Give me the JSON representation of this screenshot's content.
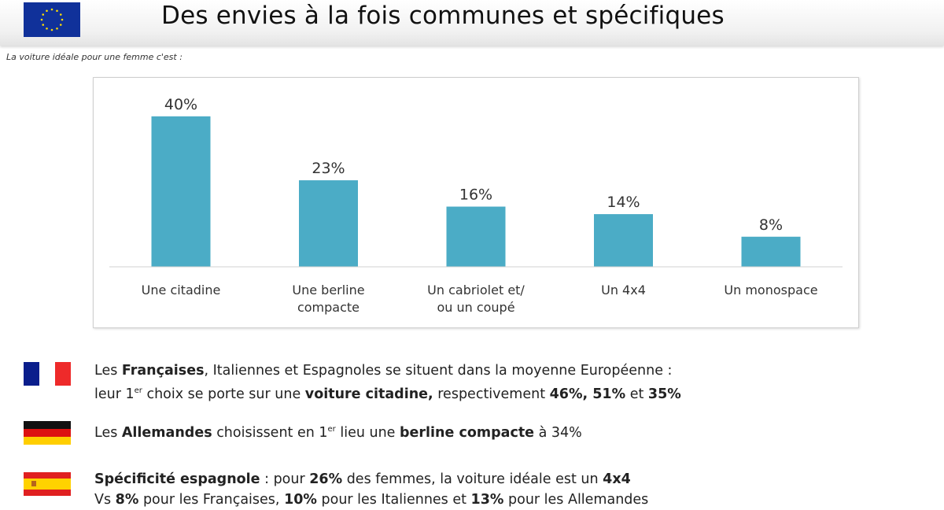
{
  "header": {
    "title": "Des envies à la fois communes et spécifiques"
  },
  "subtitle": "La voiture idéale pour une femme c'est :",
  "chart_data": {
    "type": "bar",
    "title": "La voiture idéale pour une femme c'est :",
    "categories": [
      [
        "Une citadine"
      ],
      [
        "Une berline",
        "compacte"
      ],
      [
        "Un cabriolet et/",
        "ou un coupé"
      ],
      [
        "Un 4x4"
      ],
      [
        "Un monospace"
      ]
    ],
    "values": [
      40,
      23,
      16,
      14,
      8
    ],
    "labels": [
      "40%",
      "23%",
      "16%",
      "14%",
      "8%"
    ],
    "xlabel": "",
    "ylabel": "",
    "ylim": [
      0,
      50
    ],
    "grid": false,
    "bar_color": "#4bacc6"
  },
  "notes": [
    {
      "flag": "france-flag",
      "lines": [
        [
          {
            "t": "Les "
          },
          {
            "t": "Françaises",
            "b": true
          },
          {
            "t": ", Italiennes et Espagnoles se situent dans la moyenne Européenne :"
          }
        ],
        [
          {
            "t": "leur 1"
          },
          {
            "t": "er",
            "sup": true
          },
          {
            "t": " choix se porte sur une "
          },
          {
            "t": "voiture citadine,",
            "b": true
          },
          {
            "t": " respectivement "
          },
          {
            "t": "46%, 51%",
            "b": true
          },
          {
            "t": " et "
          },
          {
            "t": "35%",
            "b": true
          }
        ]
      ]
    },
    {
      "flag": "germany-flag",
      "lines": [
        [
          {
            "t": "Les "
          },
          {
            "t": "Allemandes",
            "b": true
          },
          {
            "t": " choisissent en 1"
          },
          {
            "t": "er",
            "sup": true
          },
          {
            "t": " lieu une "
          },
          {
            "t": "berline compacte",
            "b": true
          },
          {
            "t": " à 34%"
          }
        ]
      ]
    },
    {
      "flag": "spain-flag",
      "lines": [
        [
          {
            "t": "Spécificité espagnole",
            "b": true
          },
          {
            "t": " : pour "
          },
          {
            "t": "26%",
            "b": true
          },
          {
            "t": " des femmes, la voiture idéale est un "
          },
          {
            "t": "4x4",
            "b": true
          }
        ],
        [
          {
            "t": "Vs "
          },
          {
            "t": "8%",
            "b": true
          },
          {
            "t": " pour les Françaises, "
          },
          {
            "t": "10%",
            "b": true
          },
          {
            "t": " pour les Italiennes et "
          },
          {
            "t": "13%",
            "b": true
          },
          {
            "t": " pour les Allemandes"
          }
        ]
      ]
    }
  ]
}
